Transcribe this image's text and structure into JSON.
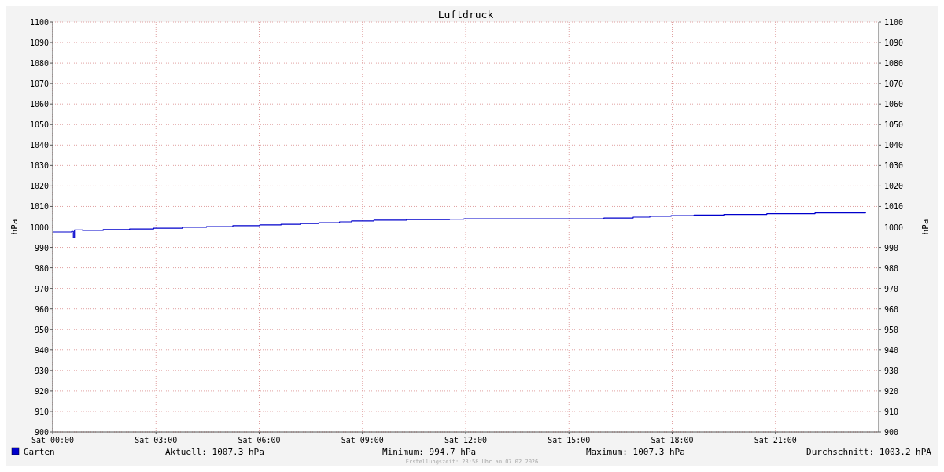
{
  "chart_data": {
    "type": "step",
    "title": "Luftdruck",
    "ylabel": "hPa",
    "y2label": "hPa",
    "xlim": [
      "2026-02-07T00:00",
      "2026-02-08T00:00"
    ],
    "xticks": [
      {
        "value": "2026-02-07T00:00",
        "label": "Sat 00:00"
      },
      {
        "value": "2026-02-07T03:00",
        "label": "Sat 03:00"
      },
      {
        "value": "2026-02-07T06:00",
        "label": "Sat 06:00"
      },
      {
        "value": "2026-02-07T09:00",
        "label": "Sat 09:00"
      },
      {
        "value": "2026-02-07T12:00",
        "label": "Sat 12:00"
      },
      {
        "value": "2026-02-07T15:00",
        "label": "Sat 15:00"
      },
      {
        "value": "2026-02-07T18:00",
        "label": "Sat 18:00"
      },
      {
        "value": "2026-02-07T21:00",
        "label": "Sat 21:00"
      }
    ],
    "ylim": [
      900,
      1100
    ],
    "yticks": [
      900,
      910,
      920,
      930,
      940,
      950,
      960,
      970,
      980,
      990,
      1000,
      1010,
      1020,
      1030,
      1040,
      1050,
      1060,
      1070,
      1080,
      1090,
      1100
    ],
    "y2lim": [
      900,
      1100
    ],
    "y2ticks": [
      900,
      910,
      920,
      930,
      940,
      950,
      960,
      970,
      980,
      990,
      1000,
      1010,
      1020,
      1030,
      1040,
      1050,
      1060,
      1070,
      1080,
      1090,
      1100
    ],
    "grid": true,
    "legend": "bottom left",
    "series": [
      {
        "name": "Garten",
        "color": "#0000cc",
        "x": [
          "2026-02-07T00:00",
          "2026-02-07T00:33",
          "2026-02-07T00:36",
          "2026-02-07T00:38",
          "2026-02-07T00:52",
          "2026-02-07T01:28",
          "2026-02-07T02:14",
          "2026-02-07T02:56",
          "2026-02-07T03:46",
          "2026-02-07T04:28",
          "2026-02-07T05:14",
          "2026-02-07T06:01",
          "2026-02-07T06:38",
          "2026-02-07T07:12",
          "2026-02-07T07:44",
          "2026-02-07T08:20",
          "2026-02-07T08:41",
          "2026-02-07T09:20",
          "2026-02-07T10:17",
          "2026-02-07T11:32",
          "2026-02-07T11:57",
          "2026-02-07T16:01",
          "2026-02-07T16:52",
          "2026-02-07T17:21",
          "2026-02-07T17:58",
          "2026-02-07T18:38",
          "2026-02-07T19:30",
          "2026-02-07T20:45",
          "2026-02-07T22:09",
          "2026-02-07T23:37",
          "2026-02-08T00:00"
        ],
        "values": [
          997.5,
          997.8,
          994.7,
          998.5,
          998.3,
          998.7,
          999.0,
          999.4,
          999.8,
          1000.2,
          1000.6,
          1001.0,
          1001.3,
          1001.7,
          1002.1,
          1002.5,
          1002.9,
          1003.3,
          1003.6,
          1003.8,
          1004.0,
          1004.4,
          1004.8,
          1005.2,
          1005.5,
          1005.8,
          1006.1,
          1006.5,
          1006.9,
          1007.3,
          1007.3
        ]
      }
    ],
    "annotations": [
      "Aktuell: 1007.3 hPa",
      "Minimum: 994.7 hPa",
      "Maximum: 1007.3 hPa",
      "Durchschnitt: 1003.2 hPA",
      "Erstellungszeit: 23:58 Uhr am 07.02.2026"
    ]
  }
}
